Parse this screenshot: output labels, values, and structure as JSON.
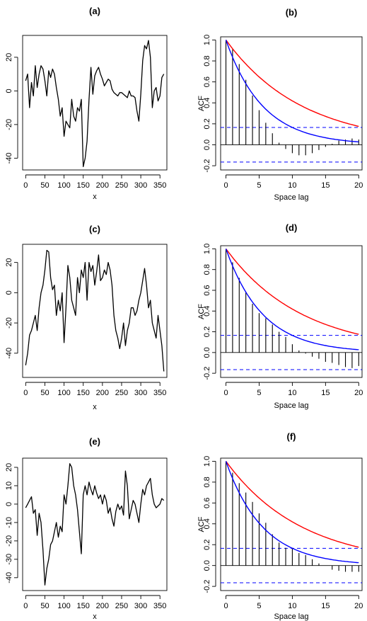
{
  "chart_data": [
    {
      "type": "line",
      "panel_label": "(a)",
      "xlabel": "x",
      "ylabel": "",
      "xlim": [
        -8,
        368
      ],
      "ylim": [
        -47,
        33
      ],
      "xticks": [
        0,
        50,
        100,
        150,
        200,
        250,
        300,
        350
      ],
      "yticks": [
        -40,
        -20,
        0,
        20
      ],
      "series": [
        {
          "color": "#000000",
          "x": [
            0,
            5,
            10,
            15,
            20,
            25,
            30,
            35,
            40,
            45,
            50,
            55,
            60,
            65,
            70,
            75,
            80,
            85,
            90,
            95,
            100,
            105,
            110,
            115,
            120,
            125,
            130,
            135,
            140,
            145,
            150,
            155,
            160,
            165,
            170,
            175,
            180,
            185,
            190,
            195,
            200,
            205,
            210,
            215,
            220,
            225,
            230,
            235,
            240,
            245,
            250,
            255,
            260,
            265,
            270,
            275,
            280,
            285,
            290,
            295,
            300,
            305,
            310,
            315,
            320,
            325,
            330,
            335,
            340,
            345,
            350,
            355,
            360
          ],
          "y": [
            6,
            10,
            -10,
            5,
            -3,
            15,
            2,
            10,
            15,
            13,
            6,
            -3,
            12,
            8,
            13,
            10,
            2,
            -5,
            -15,
            -10,
            -27,
            -18,
            -20,
            -22,
            -5,
            -15,
            -18,
            -10,
            -12,
            -5,
            -45,
            -40,
            -30,
            -5,
            14,
            -2,
            9,
            12,
            14,
            10,
            7,
            3,
            5,
            7,
            6,
            1,
            -1,
            -2,
            -3,
            -1,
            -1,
            -2,
            -3,
            -4,
            0,
            -3,
            -3,
            -4,
            -12,
            -18,
            -2,
            18,
            27,
            25,
            30,
            20,
            -10,
            0,
            2,
            -6,
            -3,
            8,
            10
          ]
        }
      ]
    },
    {
      "type": "bar",
      "panel_label": "(b)",
      "xlabel": "Space lag",
      "ylabel": "ACF",
      "xlim": [
        -0.8,
        20.5
      ],
      "ylim": [
        -0.24,
        1.03
      ],
      "xticks": [
        0,
        5,
        10,
        15,
        20
      ],
      "yticks": [
        -0.2,
        0.0,
        0.2,
        0.4,
        0.6,
        0.8,
        1.0
      ],
      "lags": [
        0,
        1,
        2,
        3,
        4,
        5,
        6,
        7,
        8,
        9,
        10,
        11,
        12,
        13,
        14,
        15,
        16,
        17,
        18,
        19,
        20
      ],
      "acf": [
        1.0,
        0.91,
        0.77,
        0.62,
        0.47,
        0.33,
        0.21,
        0.11,
        0.02,
        -0.04,
        -0.08,
        -0.1,
        -0.1,
        -0.08,
        -0.05,
        -0.02,
        0.01,
        0.04,
        0.05,
        0.06,
        0.05
      ],
      "confidence_bound": 0.165,
      "curves": [
        {
          "color": "#ff0000",
          "decay": 0.087
        },
        {
          "color": "#0000ff",
          "decay": 0.18
        }
      ]
    },
    {
      "type": "line",
      "panel_label": "(c)",
      "xlabel": "x",
      "ylabel": "",
      "xlim": [
        -8,
        368
      ],
      "ylim": [
        -56,
        32
      ],
      "xticks": [
        0,
        50,
        100,
        150,
        200,
        250,
        300,
        350
      ],
      "yticks": [
        -40,
        -20,
        0,
        20
      ],
      "series": [
        {
          "color": "#000000",
          "x": [
            0,
            5,
            10,
            15,
            20,
            25,
            30,
            35,
            40,
            45,
            50,
            55,
            60,
            65,
            70,
            75,
            80,
            85,
            90,
            95,
            100,
            105,
            110,
            115,
            120,
            125,
            130,
            135,
            140,
            145,
            150,
            155,
            160,
            165,
            170,
            175,
            180,
            185,
            190,
            195,
            200,
            205,
            210,
            215,
            220,
            225,
            230,
            235,
            240,
            245,
            250,
            255,
            260,
            265,
            270,
            275,
            280,
            285,
            290,
            295,
            300,
            305,
            310,
            315,
            320,
            325,
            330,
            335,
            340,
            345,
            350,
            355,
            360
          ],
          "y": [
            -48,
            -40,
            -28,
            -25,
            -20,
            -15,
            -25,
            -10,
            0,
            5,
            15,
            28,
            27,
            10,
            2,
            5,
            -15,
            -5,
            -12,
            0,
            -33,
            -10,
            18,
            10,
            -5,
            -10,
            -15,
            10,
            0,
            15,
            10,
            20,
            -5,
            20,
            14,
            18,
            5,
            14,
            25,
            8,
            10,
            15,
            12,
            20,
            15,
            5,
            -15,
            -25,
            -30,
            -37,
            -30,
            -20,
            -35,
            -25,
            -20,
            -10,
            -10,
            -15,
            -12,
            -5,
            0,
            8,
            16,
            5,
            -10,
            -5,
            -20,
            -25,
            -30,
            -15,
            -25,
            -35,
            -52
          ]
        }
      ]
    },
    {
      "type": "bar",
      "panel_label": "(d)",
      "xlabel": "Space lag",
      "ylabel": "ACF",
      "xlim": [
        -0.8,
        20.5
      ],
      "ylim": [
        -0.24,
        1.03
      ],
      "xticks": [
        0,
        5,
        10,
        15,
        20
      ],
      "yticks": [
        -0.2,
        0.0,
        0.2,
        0.4,
        0.6,
        0.8,
        1.0
      ],
      "lags": [
        0,
        1,
        2,
        3,
        4,
        5,
        6,
        7,
        8,
        9,
        10,
        11,
        12,
        13,
        14,
        15,
        16,
        17,
        18,
        19,
        20
      ],
      "acf": [
        1.0,
        0.87,
        0.72,
        0.58,
        0.47,
        0.38,
        0.33,
        0.27,
        0.2,
        0.15,
        0.08,
        0.02,
        -0.01,
        -0.04,
        -0.06,
        -0.09,
        -0.1,
        -0.12,
        -0.14,
        -0.15,
        -0.13
      ],
      "confidence_bound": 0.165,
      "curves": [
        {
          "color": "#ff0000",
          "decay": 0.087
        },
        {
          "color": "#0000ff",
          "decay": 0.18
        }
      ]
    },
    {
      "type": "line",
      "panel_label": "(e)",
      "xlabel": "x",
      "ylabel": "",
      "xlim": [
        -8,
        368
      ],
      "ylim": [
        -47,
        25
      ],
      "xticks": [
        0,
        50,
        100,
        150,
        200,
        250,
        300,
        350
      ],
      "yticks": [
        -40,
        -30,
        -20,
        -10,
        0,
        10,
        20
      ],
      "series": [
        {
          "color": "#000000",
          "x": [
            0,
            5,
            10,
            15,
            20,
            25,
            30,
            35,
            40,
            45,
            50,
            55,
            60,
            65,
            70,
            75,
            80,
            85,
            90,
            95,
            100,
            105,
            110,
            115,
            120,
            125,
            130,
            135,
            140,
            145,
            150,
            155,
            160,
            165,
            170,
            175,
            180,
            185,
            190,
            195,
            200,
            205,
            210,
            215,
            220,
            225,
            230,
            235,
            240,
            245,
            250,
            255,
            260,
            265,
            270,
            275,
            280,
            285,
            290,
            295,
            300,
            305,
            310,
            315,
            320,
            325,
            330,
            335,
            340,
            345,
            350,
            355,
            360
          ],
          "y": [
            -2,
            0,
            2,
            4,
            -5,
            -3,
            -17,
            -5,
            -10,
            -25,
            -44,
            -35,
            -30,
            -22,
            -20,
            -15,
            -10,
            -18,
            -12,
            -15,
            5,
            0,
            10,
            22,
            20,
            10,
            5,
            -3,
            -15,
            -27,
            5,
            10,
            5,
            12,
            8,
            5,
            10,
            6,
            3,
            5,
            0,
            5,
            2,
            -5,
            -2,
            -8,
            -12,
            -4,
            0,
            -3,
            -1,
            -6,
            18,
            10,
            -8,
            -3,
            2,
            0,
            -5,
            -10,
            0,
            8,
            5,
            10,
            12,
            14,
            5,
            0,
            -2,
            -1,
            0,
            3,
            2
          ]
        }
      ]
    },
    {
      "type": "bar",
      "panel_label": "(f)",
      "xlabel": "Space lag",
      "ylabel": "ACF",
      "xlim": [
        -0.8,
        20.5
      ],
      "ylim": [
        -0.24,
        1.03
      ],
      "xticks": [
        0,
        5,
        10,
        15,
        20
      ],
      "yticks": [
        -0.2,
        0.0,
        0.2,
        0.4,
        0.6,
        0.8,
        1.0
      ],
      "lags": [
        0,
        1,
        2,
        3,
        4,
        5,
        6,
        7,
        8,
        9,
        10,
        11,
        12,
        13,
        14,
        15,
        16,
        17,
        18,
        19,
        20
      ],
      "acf": [
        1.0,
        0.89,
        0.79,
        0.7,
        0.61,
        0.5,
        0.41,
        0.3,
        0.22,
        0.17,
        0.17,
        0.12,
        0.1,
        0.06,
        0.02,
        0.0,
        -0.04,
        -0.05,
        -0.06,
        -0.06,
        -0.06
      ],
      "confidence_bound": 0.165,
      "curves": [
        {
          "color": "#ff0000",
          "decay": 0.087
        },
        {
          "color": "#0000ff",
          "decay": 0.18
        }
      ]
    }
  ]
}
